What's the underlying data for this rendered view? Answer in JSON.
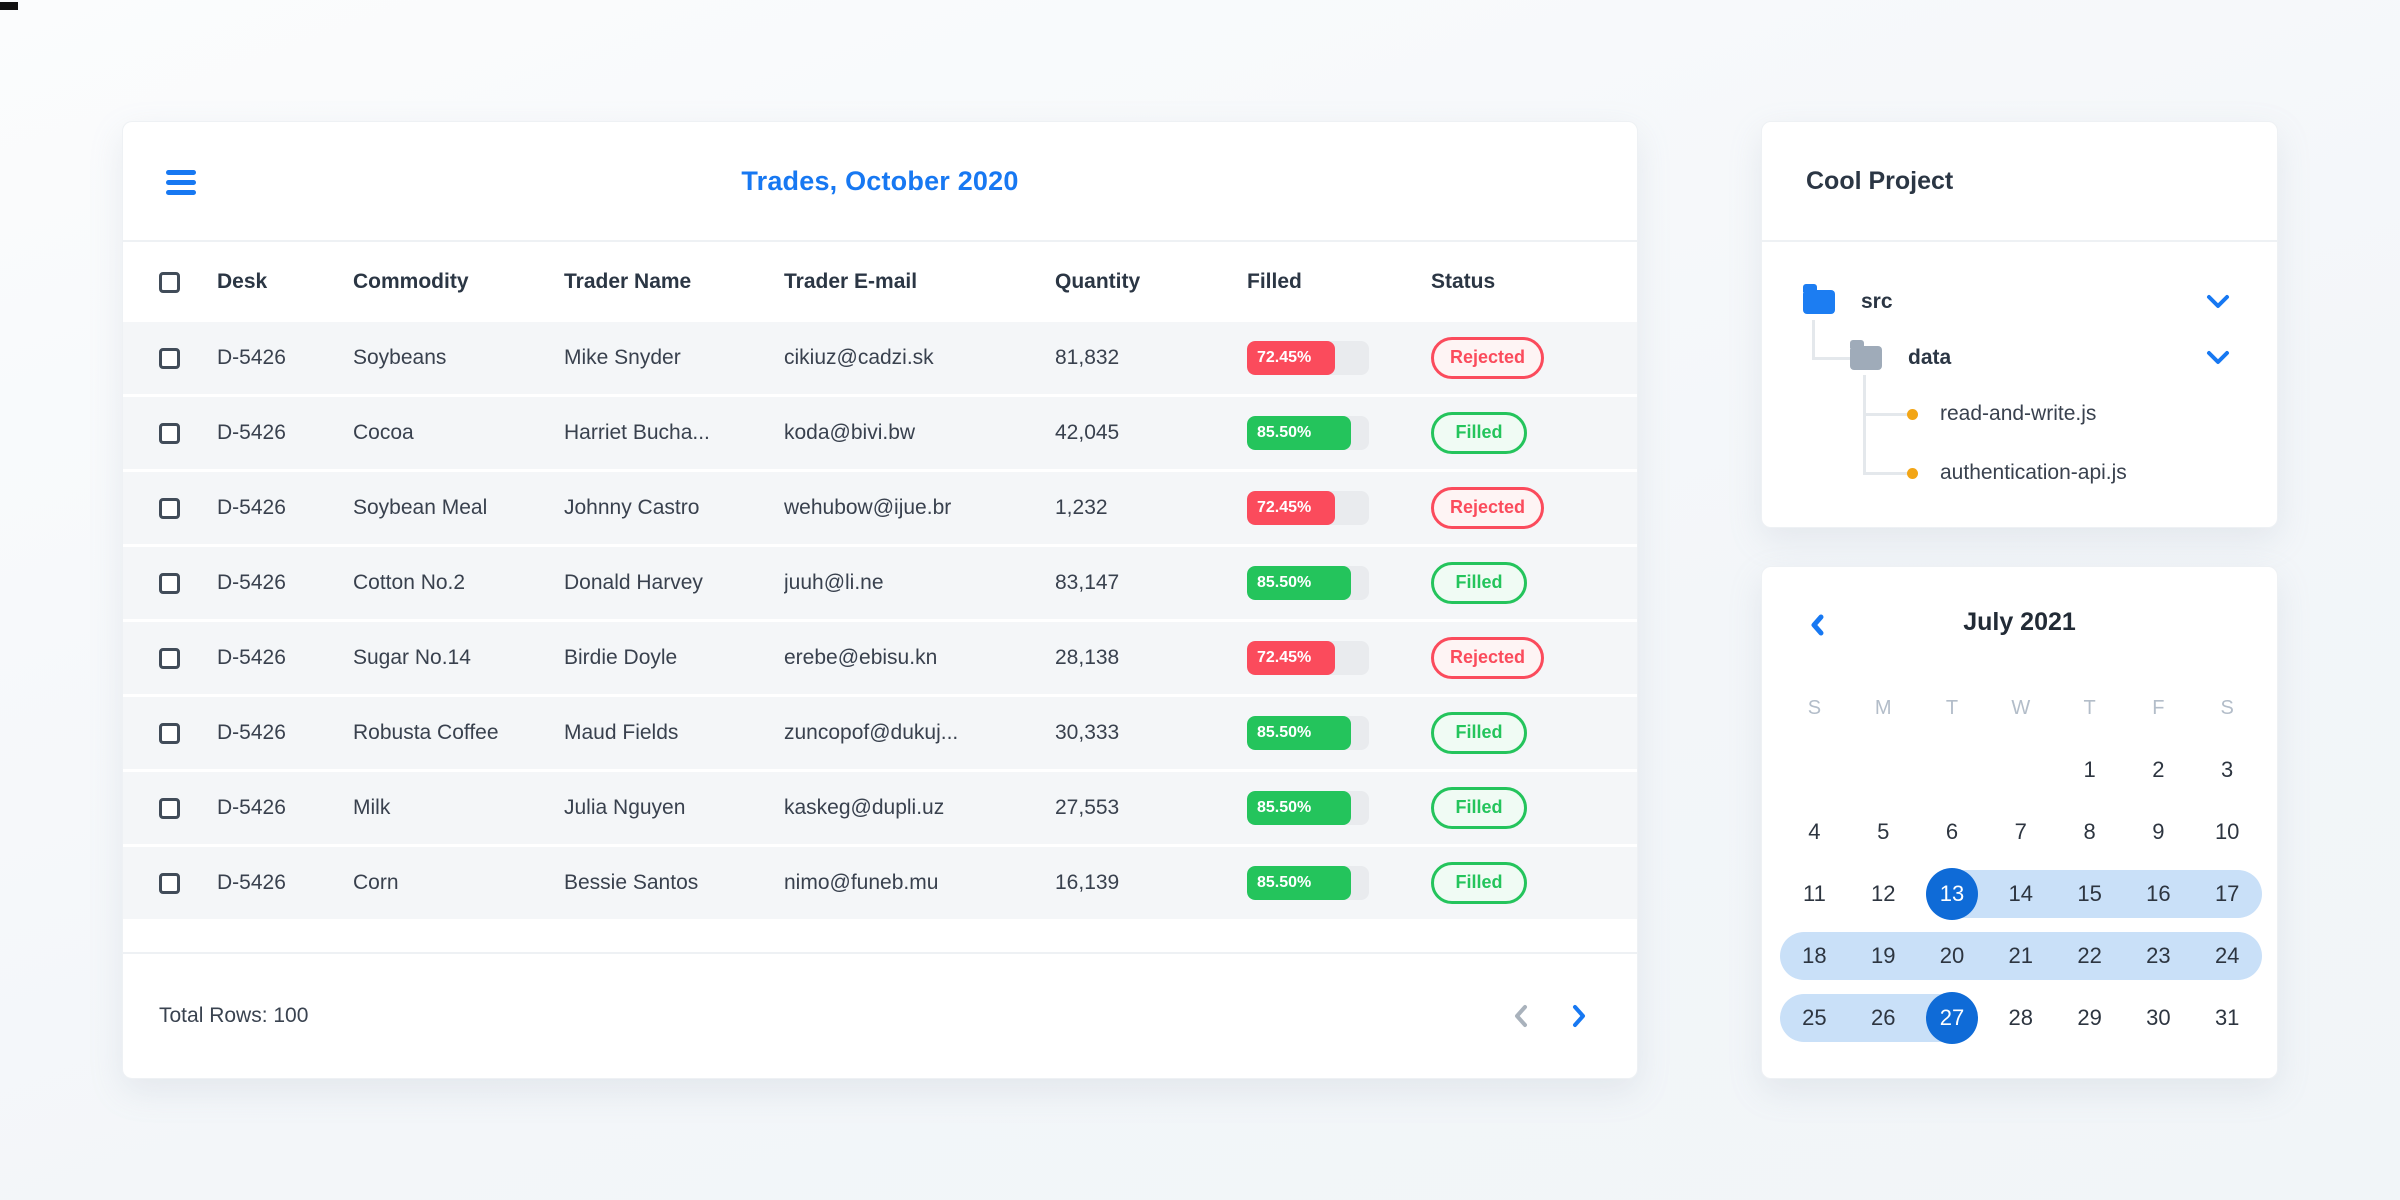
{
  "colors": {
    "accent_blue": "#1778f2",
    "selected_day_blue": "#0f6bd7",
    "range_band_blue": "#c9e0f8",
    "danger_red": "#fb4b5c",
    "success_green": "#24c45c",
    "row_background": "#f4f6f8",
    "folder_blue": "#1c7df2",
    "folder_gray": "#9fabb9",
    "file_dot_orange": "#f2a516"
  },
  "icons": {
    "menu": "hamburger-icon",
    "pager_prev": "chevron-left-icon",
    "pager_next": "chevron-right-icon",
    "calendar_prev": "chevron-left-icon",
    "tree_expand": "chevron-down-icon",
    "folder": "folder-icon",
    "file_bullet": "dot-icon"
  },
  "trades": {
    "title": "Trades, October 2020",
    "columns": [
      "Desk",
      "Commodity",
      "Trader Name",
      "Trader E-mail",
      "Quantity",
      "Filled",
      "Status"
    ],
    "rows": [
      {
        "desk": "D-5426",
        "commodity": "Soybeans",
        "trader": "Mike Snyder",
        "email": "cikiuz@cadzi.sk",
        "quantity": "81,832",
        "filled_label": "72.45%",
        "filled_value": 72.45,
        "status": "Rejected",
        "variant": "danger"
      },
      {
        "desk": "D-5426",
        "commodity": "Cocoa",
        "trader": "Harriet Bucha...",
        "email": "koda@bivi.bw",
        "quantity": "42,045",
        "filled_label": "85.50%",
        "filled_value": 85.5,
        "status": "Filled",
        "variant": "success"
      },
      {
        "desk": "D-5426",
        "commodity": "Soybean Meal",
        "trader": "Johnny Castro",
        "email": "wehubow@ijue.br",
        "quantity": "1,232",
        "filled_label": "72.45%",
        "filled_value": 72.45,
        "status": "Rejected",
        "variant": "danger"
      },
      {
        "desk": "D-5426",
        "commodity": "Cotton No.2",
        "trader": "Donald Harvey",
        "email": "juuh@li.ne",
        "quantity": "83,147",
        "filled_label": "85.50%",
        "filled_value": 85.5,
        "status": "Filled",
        "variant": "success"
      },
      {
        "desk": "D-5426",
        "commodity": "Sugar No.14",
        "trader": "Birdie Doyle",
        "email": "erebe@ebisu.kn",
        "quantity": "28,138",
        "filled_label": "72.45%",
        "filled_value": 72.45,
        "status": "Rejected",
        "variant": "danger"
      },
      {
        "desk": "D-5426",
        "commodity": "Robusta Coffee",
        "trader": "Maud Fields",
        "email": "zuncopof@dukuj...",
        "quantity": "30,333",
        "filled_label": "85.50%",
        "filled_value": 85.5,
        "status": "Filled",
        "variant": "success"
      },
      {
        "desk": "D-5426",
        "commodity": "Milk",
        "trader": "Julia Nguyen",
        "email": "kaskeg@dupli.uz",
        "quantity": "27,553",
        "filled_label": "85.50%",
        "filled_value": 85.5,
        "status": "Filled",
        "variant": "success"
      },
      {
        "desk": "D-5426",
        "commodity": "Corn",
        "trader": "Bessie Santos",
        "email": "nimo@funeb.mu",
        "quantity": "16,139",
        "filled_label": "85.50%",
        "filled_value": 85.5,
        "status": "Filled",
        "variant": "success"
      }
    ],
    "footer": {
      "total_label": "Total Rows: 100"
    }
  },
  "tree": {
    "title": "Cool Project",
    "root_folder": "src",
    "sub_folder": "data",
    "files": [
      "read-and-write.js",
      "authentication-api.js"
    ]
  },
  "calendar": {
    "title": "July 2021",
    "weekdays": [
      "S",
      "M",
      "T",
      "W",
      "T",
      "F",
      "S"
    ],
    "selected_range": {
      "start": "13",
      "end": "27"
    },
    "weeks": [
      [
        null,
        null,
        null,
        null,
        {
          "d": "1"
        },
        {
          "d": "2"
        },
        {
          "d": "3"
        }
      ],
      [
        {
          "d": "4"
        },
        {
          "d": "5"
        },
        {
          "d": "6"
        },
        {
          "d": "7"
        },
        {
          "d": "8"
        },
        {
          "d": "9"
        },
        {
          "d": "10"
        }
      ],
      [
        {
          "d": "11"
        },
        {
          "d": "12"
        },
        {
          "d": "13",
          "sel": true,
          "range": "start"
        },
        {
          "d": "14",
          "range": "mid"
        },
        {
          "d": "15",
          "range": "mid"
        },
        {
          "d": "16",
          "range": "mid"
        },
        {
          "d": "17",
          "range": "mid",
          "cap": "right"
        }
      ],
      [
        {
          "d": "18",
          "range": "mid",
          "cap": "left"
        },
        {
          "d": "19",
          "range": "mid"
        },
        {
          "d": "20",
          "range": "mid"
        },
        {
          "d": "21",
          "range": "mid"
        },
        {
          "d": "22",
          "range": "mid"
        },
        {
          "d": "23",
          "range": "mid"
        },
        {
          "d": "24",
          "range": "mid",
          "cap": "right"
        }
      ],
      [
        {
          "d": "25",
          "range": "mid",
          "cap": "left"
        },
        {
          "d": "26",
          "range": "mid"
        },
        {
          "d": "27",
          "sel": true,
          "range": "end",
          "cap": "right"
        },
        {
          "d": "28"
        },
        {
          "d": "29"
        },
        {
          "d": "30"
        },
        {
          "d": "31"
        }
      ]
    ]
  }
}
